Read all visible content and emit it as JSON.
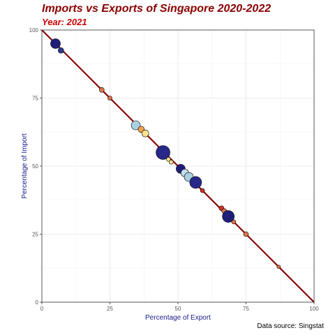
{
  "chart_data": {
    "type": "scatter",
    "title": "Imports vs Exports of Singapore 2020-2022",
    "subtitle": "Year: 2021",
    "caption": "Data source: Singstat",
    "xlabel": "Percentage of Export",
    "ylabel": "Percentage of Import",
    "xlim": [
      0,
      100
    ],
    "ylim": [
      0,
      100
    ],
    "xticks": [
      0,
      25,
      50,
      75,
      100
    ],
    "yticks": [
      0,
      25,
      50,
      75,
      100
    ],
    "grid": true,
    "reference_line": {
      "from": [
        0,
        100
      ],
      "to": [
        100,
        0
      ],
      "color": "#8b0000"
    },
    "points": [
      {
        "x": 5,
        "y": 95,
        "size": 7,
        "color": "#1f1f7a"
      },
      {
        "x": 7,
        "y": 92.5,
        "size": 4,
        "color": "#2c3a8c"
      },
      {
        "x": 22,
        "y": 78,
        "size": 3.5,
        "color": "#e0734f"
      },
      {
        "x": 25,
        "y": 75,
        "size": 3,
        "color": "#e0734f"
      },
      {
        "x": 34.5,
        "y": 65,
        "size": 6.5,
        "color": "#aad0e2"
      },
      {
        "x": 36.5,
        "y": 63.5,
        "size": 4.5,
        "color": "#f0a050"
      },
      {
        "x": 38,
        "y": 62,
        "size": 5,
        "color": "#fde390"
      },
      {
        "x": 44.5,
        "y": 55,
        "size": 10,
        "color": "#27288a"
      },
      {
        "x": 46.5,
        "y": 52.5,
        "size": 3,
        "color": "#fde390"
      },
      {
        "x": 47.5,
        "y": 51.5,
        "size": 3,
        "color": "#fde390"
      },
      {
        "x": 51,
        "y": 49,
        "size": 6.5,
        "color": "#1f1f7a"
      },
      {
        "x": 52.5,
        "y": 47.5,
        "size": 5.5,
        "color": "#c6dde9"
      },
      {
        "x": 54,
        "y": 46,
        "size": 6.5,
        "color": "#aad0e2"
      },
      {
        "x": 56.5,
        "y": 44,
        "size": 8.5,
        "color": "#27288a"
      },
      {
        "x": 59,
        "y": 41,
        "size": 3,
        "color": "#d73027"
      },
      {
        "x": 66,
        "y": 34.5,
        "size": 3.5,
        "color": "#d73027"
      },
      {
        "x": 67,
        "y": 33.5,
        "size": 3.5,
        "color": "#e0734f"
      },
      {
        "x": 68.5,
        "y": 31.5,
        "size": 8.5,
        "color": "#1f1f7a"
      },
      {
        "x": 70.5,
        "y": 29.5,
        "size": 3,
        "color": "#e0734f"
      },
      {
        "x": 75,
        "y": 25,
        "size": 3.5,
        "color": "#e0734f"
      },
      {
        "x": 87,
        "y": 13,
        "size": 2.5,
        "color": "#e0734f"
      }
    ]
  }
}
